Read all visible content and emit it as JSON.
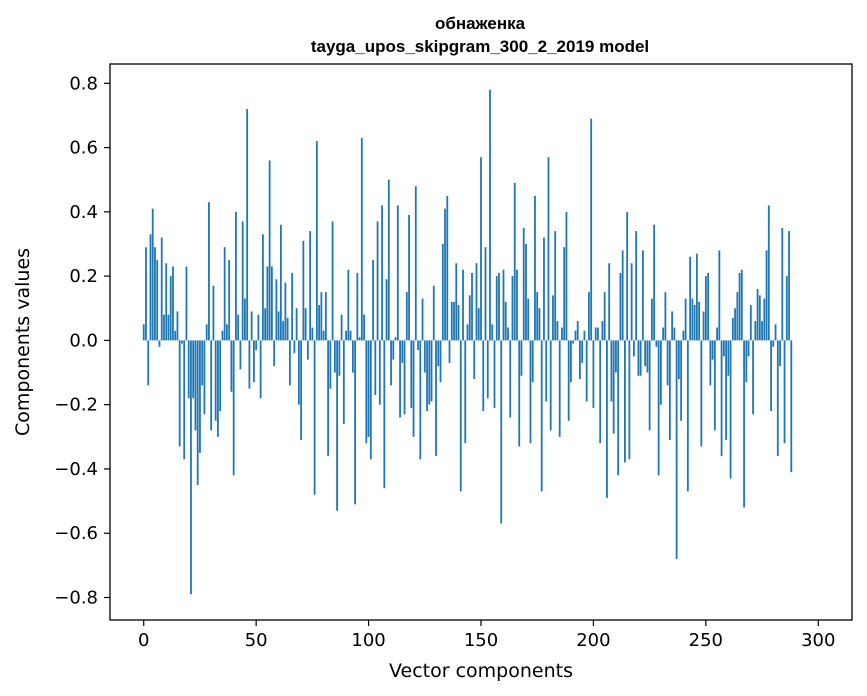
{
  "chart_data": {
    "type": "bar",
    "title": "обнаженка",
    "subtitle": "tayga_upos_skipgram_300_2_2019 model",
    "xlabel": "Vector components",
    "ylabel": "Components values",
    "xlim": [
      -15,
      315
    ],
    "ylim": [
      -0.87,
      0.86
    ],
    "xticks": [
      0,
      50,
      100,
      150,
      200,
      250,
      300
    ],
    "xtick_labels": [
      "0",
      "50",
      "100",
      "150",
      "200",
      "250",
      "300"
    ],
    "yticks": [
      0.8,
      0.6,
      0.4,
      0.2,
      0.0,
      -0.2,
      -0.4,
      -0.6,
      -0.8
    ],
    "ytick_labels": [
      "0.8",
      "0.6",
      "0.4",
      "0.2",
      "0.0",
      "−0.2",
      "−0.4",
      "−0.6",
      "−0.8"
    ],
    "bar_color": "#1f77b4",
    "grid": false,
    "legend": "none",
    "series": [
      {
        "values": [
          0.05,
          0.29,
          -0.14,
          0.33,
          0.41,
          0.29,
          0.25,
          -0.02,
          0.32,
          0.08,
          0.24,
          0.08,
          0.2,
          0.23,
          0.03,
          0.09,
          -0.33,
          -0.01,
          -0.37,
          0.23,
          -0.18,
          -0.79,
          -0.18,
          -0.28,
          -0.45,
          -0.35,
          -0.14,
          -0.23,
          0.05,
          0.43,
          -0.28,
          0.17,
          -0.25,
          -0.3,
          -0.22,
          0.03,
          0.29,
          0.05,
          0.25,
          -0.16,
          -0.42,
          0.4,
          0.08,
          -0.09,
          0.37,
          0.13,
          0.72,
          -0.15,
          0.09,
          -0.13,
          -0.03,
          0.08,
          -0.18,
          0.33,
          0.1,
          0.23,
          0.56,
          0.23,
          -0.08,
          0.19,
          0.09,
          0.36,
          0.06,
          0.18,
          0.07,
          -0.14,
          0.21,
          -0.04,
          0.1,
          -0.2,
          -0.31,
          0.31,
          0.1,
          -0.06,
          0.34,
          0.04,
          -0.48,
          0.62,
          0.11,
          0.15,
          0.03,
          0.15,
          -0.36,
          -0.15,
          0.37,
          -0.1,
          -0.53,
          -0.11,
          0.08,
          -0.26,
          0.03,
          0.22,
          0.03,
          -0.1,
          -0.51,
          0.21,
          0.01,
          0.63,
          0.08,
          -0.32,
          -0.3,
          -0.37,
          0.25,
          -0.17,
          0.37,
          -0.2,
          0.42,
          -0.46,
          0.19,
          0.5,
          -0.14,
          -0.06,
          0.01,
          0.42,
          -0.24,
          -0.07,
          -0.23,
          0.15,
          0.39,
          -0.21,
          -0.3,
          0.48,
          -0.03,
          -0.37,
          0.13,
          -0.1,
          -0.22,
          -0.2,
          -0.19,
          0.17,
          -0.36,
          -0.08,
          -0.13,
          0.3,
          0.41,
          0.45,
          -0.07,
          0.12,
          0.12,
          0.24,
          0.11,
          -0.47,
          0.22,
          -0.32,
          0.05,
          0.14,
          0.21,
          -0.12,
          0.24,
          0.1,
          0.57,
          -0.22,
          0.29,
          -0.18,
          0.78,
          0.05,
          -0.21,
          0.2,
          0.21,
          -0.57,
          0.22,
          0.12,
          0.04,
          -0.24,
          0.2,
          0.49,
          0.22,
          -0.33,
          -0.11,
          0.35,
          0.3,
          0.13,
          -0.32,
          -0.13,
          0.45,
          0.15,
          0.1,
          -0.47,
          0.32,
          -0.19,
          0.57,
          -0.28,
          0.14,
          0.34,
          0.06,
          -0.3,
          0.04,
          0.29,
          0.4,
          -0.25,
          -0.13,
          -0.01,
          0.03,
          0.06,
          -0.12,
          -0.07,
          0.03,
          -0.19,
          0.15,
          0.69,
          -0.21,
          0.04,
          0.04,
          -0.32,
          0.06,
          0.15,
          -0.49,
          0.24,
          -0.19,
          -0.29,
          -0.1,
          -0.42,
          0.21,
          0.28,
          -0.38,
          0.4,
          -0.37,
          0.24,
          -0.05,
          0.34,
          -0.11,
          -0.11,
          0.28,
          -0.08,
          -0.1,
          -0.28,
          0.13,
          0.36,
          -0.02,
          -0.42,
          -0.2,
          0.04,
          0.15,
          -0.14,
          -0.31,
          0.09,
          0.04,
          -0.68,
          -0.12,
          -0.25,
          0.03,
          0.13,
          -0.47,
          0.26,
          0.13,
          0.11,
          0.27,
          0.12,
          -0.33,
          0.09,
          0.2,
          0.21,
          -0.14,
          -0.06,
          -0.28,
          0.04,
          0.28,
          -0.36,
          -0.05,
          -0.31,
          -0.11,
          -0.43,
          0.07,
          0.1,
          0.15,
          0.21,
          0.22,
          -0.52,
          -0.13,
          -0.05,
          0.11,
          -0.23,
          0.06,
          0.16,
          0.14,
          0.06,
          0.13,
          0.28,
          0.42,
          -0.22,
          -0.02,
          0.05,
          -0.36,
          -0.08,
          0.35,
          -0.32,
          0.2,
          0.34,
          -0.41
        ]
      }
    ]
  }
}
